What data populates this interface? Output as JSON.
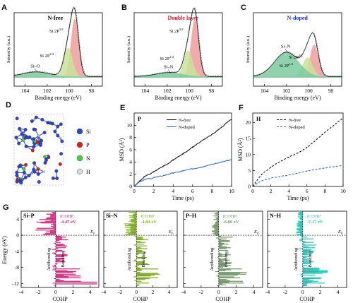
{
  "colors": {
    "green": "#c9e29a",
    "red": "#ee9c9c",
    "teal": "#7dc9a0",
    "black": "#1a1a1a",
    "blue": "#2f6fd0",
    "pink": "#e8177f",
    "lime": "#7cb312",
    "sage": "#6e9a62",
    "cyan": "#1bcfc1"
  },
  "xps_panels": [
    {
      "letter": "A",
      "title": "N-free",
      "title_color": "#000000",
      "peak_label": "Si–O",
      "si_high": "Si 2P",
      "si_high_sup": "3/2",
      "si_low": "Si 2P",
      "si_low_sup": "1/2",
      "xlabel": "Binding energy (eV)",
      "ylabel": "Intensity (a.u.)",
      "ticks": [
        "104",
        "102",
        "100",
        "98"
      ]
    },
    {
      "letter": "B",
      "title": "Double layer",
      "title_color": "#e8132a",
      "peak_label": "Si–N",
      "si_high": "Si 2P",
      "si_high_sup": "3/2",
      "si_low": "Si 2P",
      "si_low_sup": "1/2",
      "xlabel": "Binding energy (eV)",
      "ylabel": "Intensity (a.u.)",
      "ticks": [
        "104",
        "102",
        "100",
        "98"
      ]
    },
    {
      "letter": "C",
      "title": "N-doped",
      "title_color": "#1d2fd6",
      "peak_label": "Si–N",
      "si_high": "Si 2P",
      "si_high_sup": "3/2",
      "si_low": "Si 2P",
      "si_low_sup": "1/2",
      "xlabel": "Binding energy (eV)",
      "ylabel": "Intensity (a.u.)",
      "ticks": [
        "104",
        "102",
        "100",
        "98"
      ]
    }
  ],
  "structure": {
    "letter": "D",
    "legend": [
      {
        "label": "Si",
        "color": "#2d46c8"
      },
      {
        "label": "P",
        "color": "#e01c1c"
      },
      {
        "label": "N",
        "color": "#3fd23f"
      },
      {
        "label": "H",
        "color": "#d8d8d8"
      }
    ]
  },
  "msd_panels": [
    {
      "letter": "E",
      "corner": "P",
      "xlabel": "Time (ps)",
      "ylabel": "MSD (Å²)",
      "xticks": [
        "0",
        "2",
        "4",
        "6",
        "8",
        "10"
      ],
      "yticks": [
        "0",
        "2",
        "4",
        "6",
        "8",
        "10"
      ]
    },
    {
      "letter": "F",
      "corner": "H",
      "xlabel": "Time (ps)",
      "ylabel": "MSD (Å²)",
      "xticks": [
        "0",
        "2",
        "4",
        "6",
        "8",
        "10"
      ],
      "yticks": [
        "0",
        "5",
        "10",
        "15",
        "20"
      ]
    }
  ],
  "cohp_panels": [
    {
      "pair": "Si–P",
      "icohp_label": "ICOHP",
      "icohp_value": "-4.47 eV"
    },
    {
      "pair": "Si–N",
      "icohp_label": "ICOHP",
      "icohp_value": "-4.94 eV"
    },
    {
      "pair": "P–H",
      "icohp_label": "ICOHP",
      "icohp_value": "-6.06 eV"
    },
    {
      "pair": "N–H",
      "icohp_label": "ICOHP",
      "icohp_value": "-7.17 eV"
    }
  ],
  "cohp_common": {
    "letter": "G",
    "ylabel": "Energy (eV)",
    "xlabel": "COHP",
    "antibonding": "Antibonding",
    "bonding": "Bonding",
    "ef": "E",
    "ef_sub": "F",
    "xticks": [
      "-4",
      "-2",
      "0",
      "2",
      "4"
    ],
    "yticks": [
      "4",
      "0",
      "-4",
      "-8",
      "-12"
    ]
  },
  "chart_data": [
    {
      "type": "area",
      "title": "N-free",
      "xlabel": "Binding energy (eV)",
      "ylabel": "Intensity (a.u.)",
      "x_range": [
        105,
        97
      ],
      "x_reversed": true,
      "series": [
        {
          "name": "Si 2P3/2",
          "center": 99.5,
          "height": 1.0,
          "width": 0.35
        },
        {
          "name": "Si 2P1/2",
          "center": 100.1,
          "height": 0.5,
          "width": 0.4
        },
        {
          "name": "Si–O",
          "center": 103.0,
          "height": 0.08,
          "width": 1.2
        }
      ]
    },
    {
      "type": "area",
      "title": "Double layer",
      "xlabel": "Binding energy (eV)",
      "ylabel": "Intensity (a.u.)",
      "x_range": [
        105,
        97
      ],
      "x_reversed": true,
      "series": [
        {
          "name": "Si 2P3/2",
          "center": 99.5,
          "height": 1.0,
          "width": 0.35
        },
        {
          "name": "Si 2P1/2",
          "center": 100.1,
          "height": 0.45,
          "width": 0.4
        },
        {
          "name": "Si–N",
          "center": 101.8,
          "height": 0.07,
          "width": 1.2
        }
      ]
    },
    {
      "type": "area",
      "title": "N-doped",
      "xlabel": "Binding energy (eV)",
      "ylabel": "Intensity (a.u.)",
      "x_range": [
        105,
        97
      ],
      "x_reversed": true,
      "series": [
        {
          "name": "Si 2P3/2",
          "center": 99.5,
          "height": 0.55,
          "width": 0.38
        },
        {
          "name": "Si 2P1/2",
          "center": 100.1,
          "height": 0.33,
          "width": 0.45
        },
        {
          "name": "Si–N",
          "center": 102.0,
          "height": 0.42,
          "width": 1.1
        }
      ]
    },
    {
      "type": "line",
      "corner_label": "P",
      "xlabel": "Time (ps)",
      "ylabel": "MSD (Å²)",
      "xlim": [
        0,
        10
      ],
      "ylim": [
        0,
        12
      ],
      "x": [
        0,
        0.5,
        1,
        2,
        3,
        4,
        5,
        6,
        7,
        8,
        9,
        10
      ],
      "series": [
        {
          "name": "N-free",
          "color": "#1a1a1a",
          "values": [
            0,
            0.8,
            1.5,
            2.4,
            3.3,
            4.3,
            5.3,
            6.4,
            7.5,
            8.5,
            9.7,
            11.0
          ]
        },
        {
          "name": "N-doped",
          "color": "#2f6fd0",
          "values": [
            0,
            0.7,
            1.1,
            1.4,
            1.8,
            2.2,
            2.6,
            2.9,
            3.2,
            3.6,
            4.0,
            4.4
          ]
        }
      ],
      "legend": "top-left"
    },
    {
      "type": "line",
      "corner_label": "H",
      "xlabel": "Time (ps)",
      "ylabel": "MSD (Å²)",
      "xlim": [
        0,
        10
      ],
      "ylim": [
        0,
        23
      ],
      "x": [
        0,
        0.5,
        1,
        2,
        3,
        4,
        5,
        6,
        7,
        8,
        9,
        10
      ],
      "series": [
        {
          "name": "N-free",
          "style": "dashed",
          "color": "#1a1a1a",
          "values": [
            0,
            2.0,
            3.8,
            6.0,
            7.8,
            9.2,
            10.5,
            12.2,
            14.5,
            17.0,
            19.2,
            21.5
          ]
        },
        {
          "name": "N-doped",
          "style": "dashed",
          "color": "#2f6fd0",
          "values": [
            0,
            1.0,
            1.8,
            2.6,
            3.1,
            3.6,
            4.2,
            4.8,
            5.3,
            5.8,
            6.2,
            6.6
          ]
        }
      ],
      "legend": "top-left"
    },
    {
      "type": "area",
      "panel": "Si–P",
      "xlabel": "COHP",
      "ylabel": "Energy (eV)",
      "xlim": [
        -4,
        5
      ],
      "ylim": [
        -13,
        6
      ],
      "icohp": "-4.47 eV"
    },
    {
      "type": "area",
      "panel": "Si–N",
      "xlabel": "COHP",
      "ylabel": "Energy (eV)",
      "xlim": [
        -4,
        5
      ],
      "ylim": [
        -13,
        6
      ],
      "icohp": "-4.94 eV"
    },
    {
      "type": "area",
      "panel": "P–H",
      "xlabel": "COHP",
      "ylabel": "Energy (eV)",
      "xlim": [
        -4,
        5
      ],
      "ylim": [
        -13,
        6
      ],
      "icohp": "-6.06 eV"
    },
    {
      "type": "area",
      "panel": "N–H",
      "xlabel": "COHP",
      "ylabel": "Energy (eV)",
      "xlim": [
        -4,
        5
      ],
      "ylim": [
        -13,
        6
      ],
      "icohp": "-7.17 eV"
    }
  ]
}
